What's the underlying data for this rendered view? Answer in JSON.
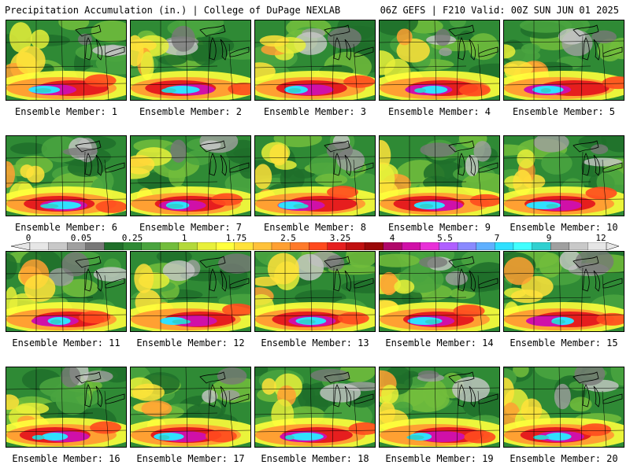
{
  "header": {
    "title": "Precipitation Accumulation (in.) | College of DuPage NEXLAB",
    "run_info": "06Z GEFS | F210 Valid: 00Z SUN JUN 01 2025"
  },
  "legend": {
    "tick_labels": [
      "0",
      "0.05",
      "0.25",
      "1",
      "1.75",
      "2.5",
      "3.25",
      "4",
      "5.5",
      "7",
      "9",
      "12"
    ],
    "colors": [
      "#e6e6e6",
      "#c8c8c8",
      "#a0a0a0",
      "#787878",
      "#1f6f2a",
      "#2f8a35",
      "#4aa43f",
      "#72bd3c",
      "#b3d93a",
      "#e8f03a",
      "#ffff3c",
      "#ffe23a",
      "#ffc23a",
      "#ffa032",
      "#ff7a2a",
      "#ff4a1e",
      "#e61e1e",
      "#c01010",
      "#9a0808",
      "#b0086a",
      "#d010a8",
      "#e830d8",
      "#b060ff",
      "#8a8aff",
      "#60b0ff",
      "#30e0ff",
      "#40ffff",
      "#30d0d0",
      "#a0a0a0",
      "#c8c8c8",
      "#e6e6e6"
    ]
  },
  "panels": [
    {
      "label": "Ensemble Member: 1"
    },
    {
      "label": "Ensemble Member: 2"
    },
    {
      "label": "Ensemble Member: 3"
    },
    {
      "label": "Ensemble Member: 4"
    },
    {
      "label": "Ensemble Member: 5"
    },
    {
      "label": "Ensemble Member: 6"
    },
    {
      "label": "Ensemble Member: 7"
    },
    {
      "label": "Ensemble Member: 8"
    },
    {
      "label": "Ensemble Member: 9"
    },
    {
      "label": "Ensemble Member: 10"
    },
    {
      "label": "Ensemble Member: 11"
    },
    {
      "label": "Ensemble Member: 12"
    },
    {
      "label": "Ensemble Member: 13"
    },
    {
      "label": "Ensemble Member: 14"
    },
    {
      "label": "Ensemble Member: 15"
    },
    {
      "label": "Ensemble Member: 16"
    },
    {
      "label": "Ensemble Member: 17"
    },
    {
      "label": "Ensemble Member: 18"
    },
    {
      "label": "Ensemble Member: 19"
    },
    {
      "label": "Ensemble Member: 20"
    }
  ]
}
